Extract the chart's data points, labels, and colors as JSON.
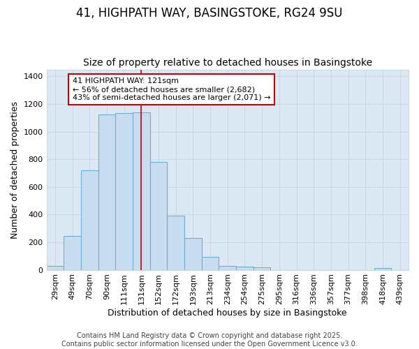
{
  "title1": "41, HIGHPATH WAY, BASINGSTOKE, RG24 9SU",
  "title2": "Size of property relative to detached houses in Basingstoke",
  "xlabel": "Distribution of detached houses by size in Basingstoke",
  "ylabel": "Number of detached properties",
  "categories": [
    "29sqm",
    "49sqm",
    "70sqm",
    "90sqm",
    "111sqm",
    "131sqm",
    "152sqm",
    "172sqm",
    "193sqm",
    "213sqm",
    "234sqm",
    "254sqm",
    "275sqm",
    "295sqm",
    "316sqm",
    "336sqm",
    "357sqm",
    "377sqm",
    "398sqm",
    "418sqm",
    "439sqm"
  ],
  "values": [
    28,
    245,
    720,
    1125,
    1135,
    1140,
    780,
    390,
    230,
    95,
    28,
    25,
    18,
    0,
    0,
    0,
    0,
    0,
    0,
    15,
    0
  ],
  "bar_color": "#c8ddf0",
  "bar_edge_color": "#6aaed6",
  "highlight_bar_index": 5,
  "highlight_line_color": "#cc0000",
  "annotation_text": "41 HIGHPATH WAY: 121sqm\n← 56% of detached houses are smaller (2,682)\n43% of semi-detached houses are larger (2,071) →",
  "annotation_box_facecolor": "white",
  "annotation_box_edgecolor": "#cc0000",
  "ylim": [
    0,
    1450
  ],
  "yticks": [
    0,
    200,
    400,
    600,
    800,
    1000,
    1200,
    1400
  ],
  "grid_color": "#c8d8e8",
  "bg_color": "#ffffff",
  "plot_bg_color": "#dce9f5",
  "footer_text": "Contains HM Land Registry data © Crown copyright and database right 2025.\nContains public sector information licensed under the Open Government Licence v3.0.",
  "title_fontsize": 12,
  "subtitle_fontsize": 10,
  "axis_label_fontsize": 9,
  "tick_fontsize": 8,
  "annotation_fontsize": 8,
  "footer_fontsize": 7
}
